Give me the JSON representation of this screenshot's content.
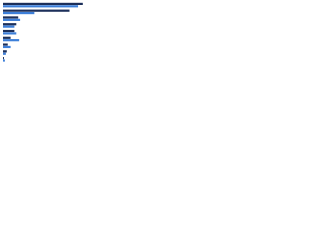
{
  "chart_data": {
    "type": "bar",
    "orientation": "horizontal",
    "categories": [
      null,
      null,
      null,
      null,
      null,
      null,
      null,
      null,
      null
    ],
    "series": [
      {
        "color": "#1c2f5a",
        "values": [
          84,
          70,
          16,
          14,
          12,
          8,
          5,
          4,
          1
        ]
      },
      {
        "color": "#3d7fd9",
        "values": [
          79,
          33,
          18,
          12,
          14,
          17,
          8,
          3,
          2
        ]
      }
    ],
    "xlim": [
      0,
      100
    ]
  }
}
